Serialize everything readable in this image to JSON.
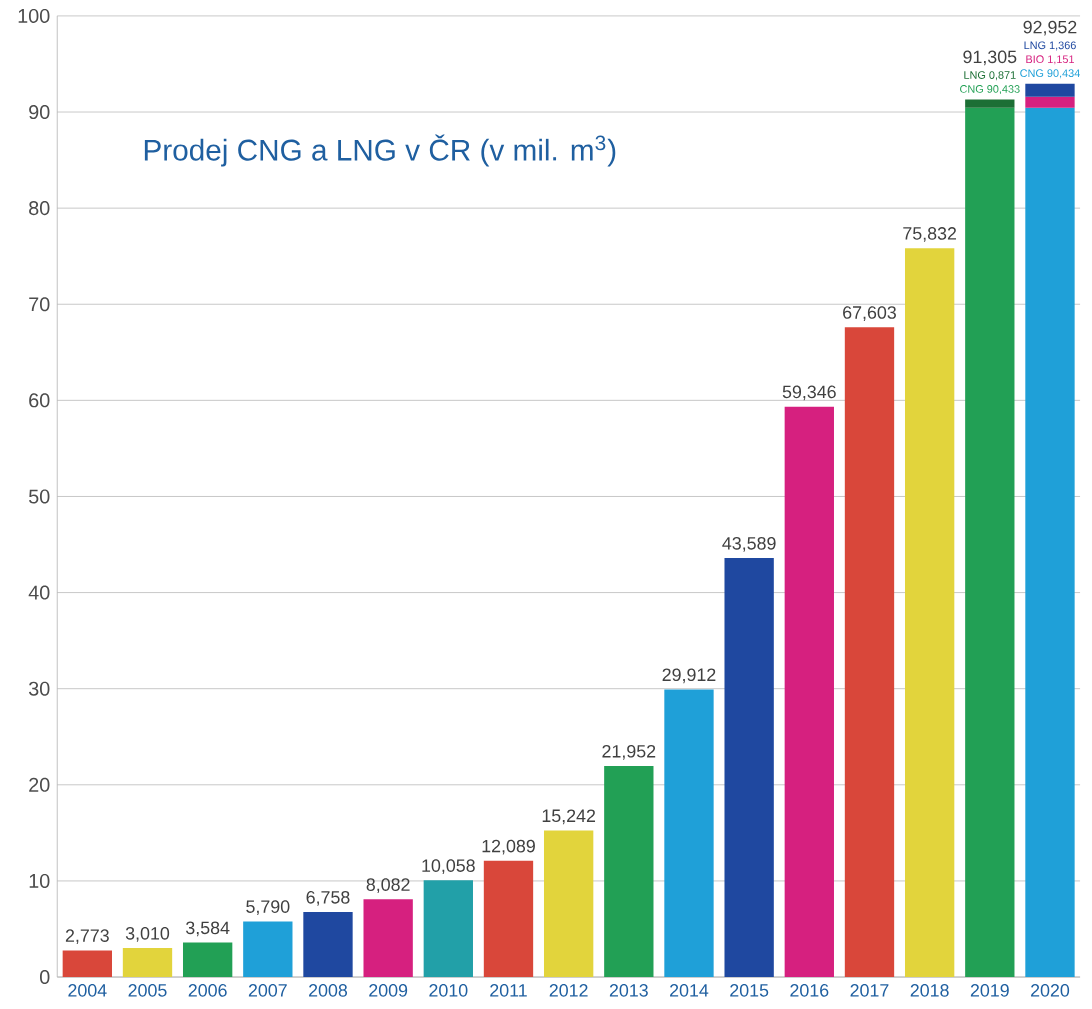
{
  "chart_data": {
    "type": "bar",
    "title": "Prodej CNG a LNG v ČR (v mil. m$^{3}$)",
    "categories": [
      "2004",
      "2005",
      "2006",
      "2007",
      "2008",
      "2009",
      "2010",
      "2011",
      "2012",
      "2013",
      "2014",
      "2015",
      "2016",
      "2017",
      "2018",
      "2019",
      "2020"
    ],
    "stacked": true,
    "series": [
      {
        "values": [
          2.773,
          3.01,
          3.584,
          5.79,
          6.758,
          8.082,
          10.058,
          12.089,
          15.242,
          21.952,
          29.912,
          43.589,
          59.346,
          67.603,
          75.832,
          90.433,
          90.434
        ],
        "colors": [
          "#d9473a",
          "#e2d43c",
          "#22a055",
          "#1fa0d8",
          "#1f48a0",
          "#d6207f",
          "#22a0a8",
          "#d9473a",
          "#e2d43c",
          "#22a055",
          "#1fa0d8",
          "#1f48a0",
          "#d6207f",
          "#d9473a",
          "#e2d43c",
          "#22a055",
          "#1fa0d8"
        ],
        "value_labels": [
          null,
          null,
          null,
          null,
          null,
          null,
          null,
          null,
          null,
          null,
          null,
          null,
          null,
          null,
          null,
          "CNG 90,433",
          "CNG 90,434"
        ]
      },
      {
        "values": [
          null,
          null,
          null,
          null,
          null,
          null,
          null,
          null,
          null,
          null,
          null,
          null,
          null,
          null,
          null,
          null,
          1.151
        ],
        "colors": [
          null,
          null,
          null,
          null,
          null,
          null,
          null,
          null,
          null,
          null,
          null,
          null,
          null,
          null,
          null,
          null,
          "#d6207f"
        ],
        "value_labels": [
          null,
          null,
          null,
          null,
          null,
          null,
          null,
          null,
          null,
          null,
          null,
          null,
          null,
          null,
          null,
          null,
          "BIO 1,151"
        ]
      },
      {
        "values": [
          null,
          null,
          null,
          null,
          null,
          null,
          null,
          null,
          null,
          null,
          null,
          null,
          null,
          null,
          null,
          0.871,
          1.366
        ],
        "colors": [
          null,
          null,
          null,
          null,
          null,
          null,
          null,
          null,
          null,
          null,
          null,
          null,
          null,
          null,
          null,
          "#1c6f35",
          "#1f48a0"
        ],
        "value_labels": [
          null,
          null,
          null,
          null,
          null,
          null,
          null,
          null,
          null,
          null,
          null,
          null,
          null,
          null,
          null,
          "LNG 0,871",
          "LNG 1,366"
        ]
      }
    ],
    "totals": [
      "2,773",
      "3,010",
      "3,584",
      "5,790",
      "6,758",
      "8,082",
      "10,058",
      "12,089",
      "15,242",
      "21,952",
      "29,912",
      "43,589",
      "59,346",
      "67,603",
      "75,832",
      "91,305",
      "92,952"
    ],
    "ylim": [
      0,
      100
    ],
    "yticks": [
      0,
      10,
      20,
      30,
      40,
      50,
      60,
      70,
      80,
      90,
      100
    ],
    "grid": "y"
  }
}
